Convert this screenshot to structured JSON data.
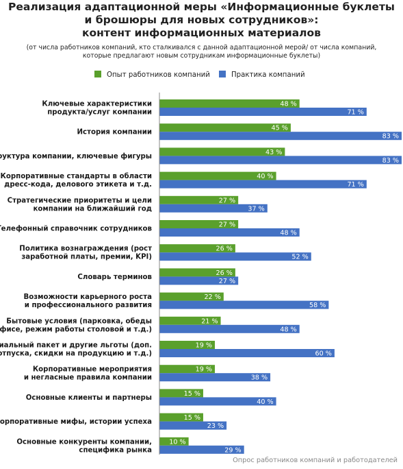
{
  "header": {
    "title_lines": [
      "Реализация адаптационной меры «Информационные буклеты",
      "и брошюры для новых сотрудников»:",
      "контент информационных материалов"
    ],
    "subtitle_lines": [
      "(от числа работников компаний, кто сталкивался с данной адаптационной мерой/ от числа компаний,",
      "которые предлагают новым сотрудникам информационные буклеты)"
    ]
  },
  "source": "Опрос работников компаний и работодателей",
  "chart_data": {
    "type": "bar",
    "orientation": "horizontal",
    "title": "Реализация адаптационной меры «Информационные буклеты и брошюры для новых сотрудников»: контент информационных материалов",
    "subtitle": "(от числа работников компаний, кто сталкивался с данной адаптационной мерой/ от числа компаний, которые предлагают новым сотрудникам информационные буклеты)",
    "xlabel": "",
    "ylabel": "",
    "value_suffix": " %",
    "xlim": [
      0,
      83
    ],
    "grid": false,
    "legend_position": "top",
    "categories": [
      [
        "Ключевые характеристики",
        "продукта/услуг компании"
      ],
      [
        "История компании"
      ],
      [
        "Структура компании, ключевые фигуры"
      ],
      [
        "Корпоративные стандарты в области",
        "дресс-кода, делового этикета и т.д."
      ],
      [
        "Стратегические приоритеты и цели",
        "компании на ближайший год"
      ],
      [
        "Телефонный справочник сотрудников"
      ],
      [
        "Политика вознаграждения (рост",
        "заработной платы, премии, KPI)"
      ],
      [
        "Словарь терминов"
      ],
      [
        "Возможности карьерного роста",
        "и профессионального развития"
      ],
      [
        "Бытовые условия (парковка, обеды",
        "в офисе, режим работы столовой и т.д.)"
      ],
      [
        "Социальный пакет и другие льготы (доп.",
        "отпуска, скидки на продукцию и т.д.)"
      ],
      [
        "Корпоративные мероприятия",
        "и негласные правила компании"
      ],
      [
        "Основные клиенты и партнеры"
      ],
      [
        "Корпоративные мифы, истории успеха"
      ],
      [
        "Основные конкуренты компании,",
        "специфика рынка"
      ]
    ],
    "series": [
      {
        "name": "Опыт работников компаний",
        "color": "#5aa02c",
        "values": [
          48,
          45,
          43,
          40,
          27,
          27,
          26,
          26,
          22,
          21,
          19,
          19,
          15,
          15,
          10
        ]
      },
      {
        "name": "Практика компаний",
        "color": "#4472c4",
        "values": [
          71,
          83,
          83,
          71,
          37,
          48,
          52,
          27,
          58,
          48,
          60,
          38,
          40,
          23,
          29
        ]
      }
    ]
  }
}
